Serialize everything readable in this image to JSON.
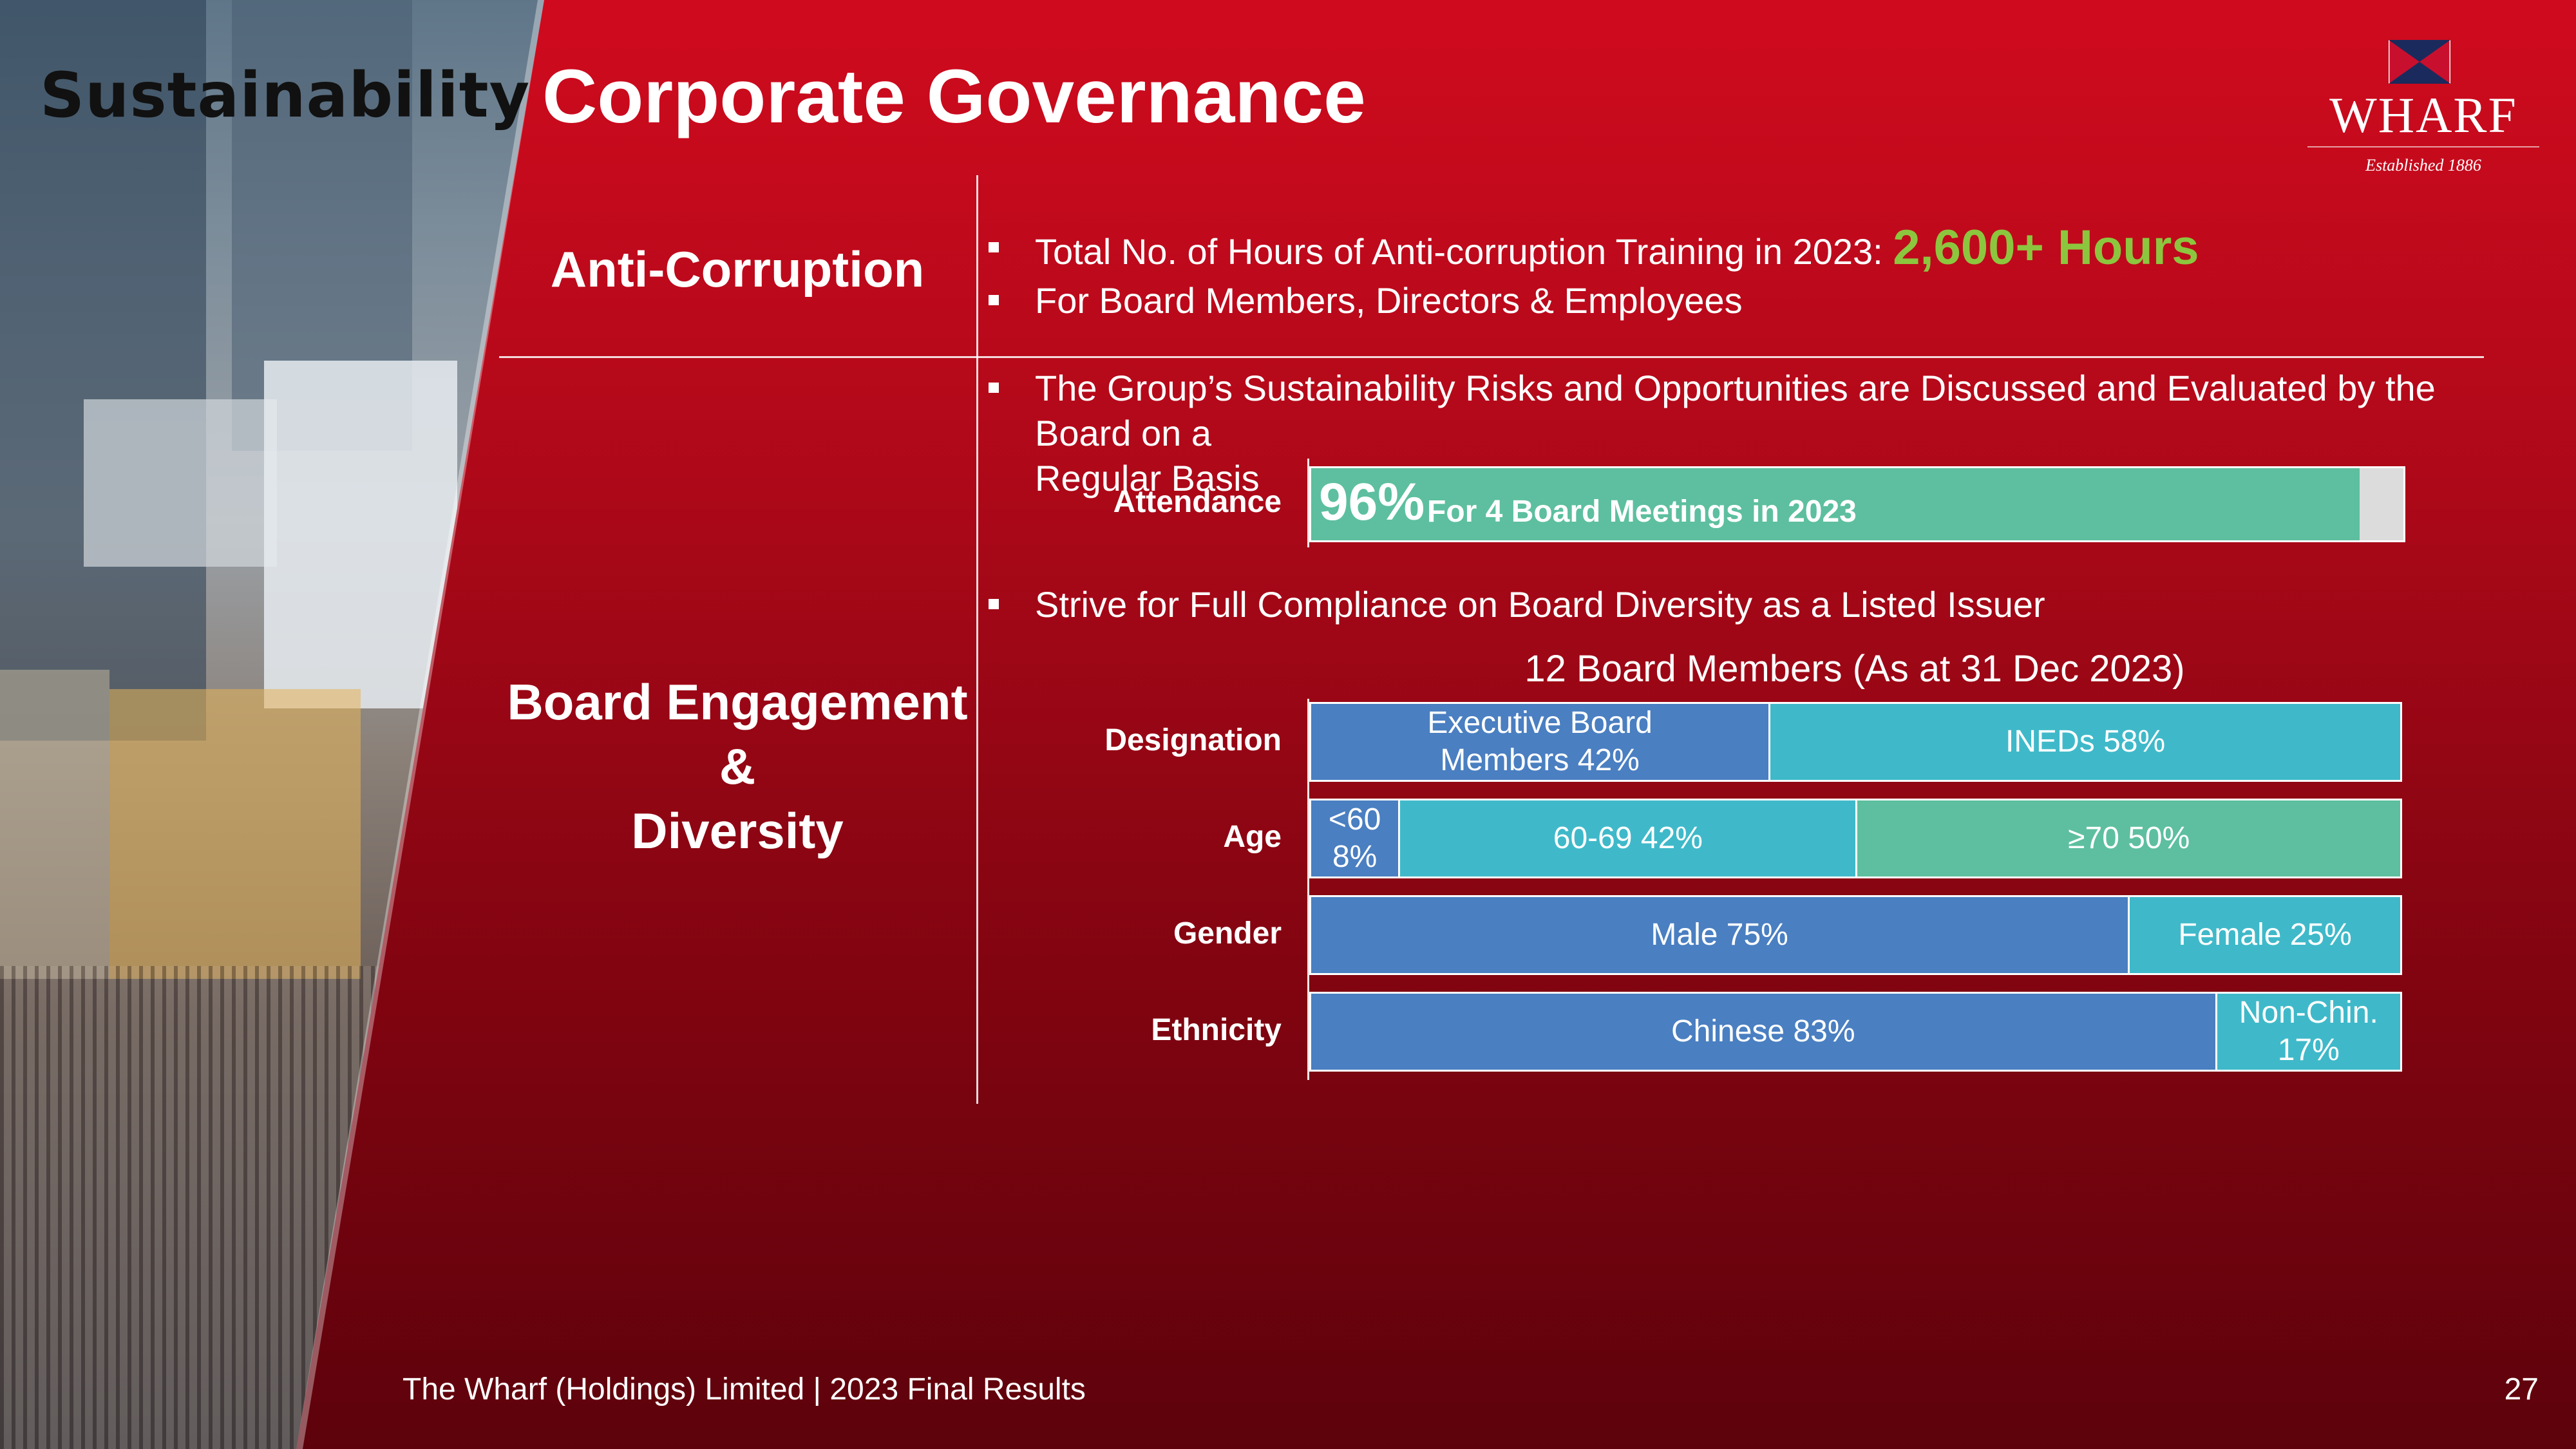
{
  "header": {
    "tag": "Sustainability",
    "title": "Corporate Governance"
  },
  "logo": {
    "name": "WHARF",
    "established": "Established 1886"
  },
  "anti_corruption": {
    "heading": "Anti-Corruption",
    "bullets": [
      {
        "text": "Total No. of Hours of Anti-corruption Training in 2023: ",
        "highlight": "2,600+ Hours"
      },
      {
        "text": "For Board Members, Directors & Employees"
      }
    ]
  },
  "board": {
    "heading_line1": "Board Engagement &",
    "heading_line2": "Diversity",
    "bullet1_line1": "The Group’s Sustainability Risks and Opportunities are Discussed and Evaluated by the Board on a",
    "bullet1_line2": "Regular Basis",
    "attendance": {
      "label": "Attendance",
      "value_pct": 96,
      "value_text": "96%",
      "description": "For 4 Board Meetings in 2023"
    },
    "bullet2": "Strive for Full Compliance on Board Diversity as a Listed Issuer"
  },
  "chart_data": {
    "type": "bar",
    "orientation": "horizontal-stacked-100",
    "title": "12 Board Members (As at 31 Dec 2023)",
    "categories": [
      "Designation",
      "Age",
      "Gender",
      "Ethnicity"
    ],
    "rows": [
      {
        "category": "Designation",
        "segments": [
          {
            "label_line1": "Executive Board",
            "label_line2": "Members 42%",
            "value": 42,
            "color": "#4a7fc1"
          },
          {
            "label_line1": "INEDs 58%",
            "label_line2": "",
            "value": 58,
            "color": "#3fb9c9"
          }
        ]
      },
      {
        "category": "Age",
        "segments": [
          {
            "label_line1": "<60 8%",
            "label_line2": "",
            "value": 8,
            "color": "#4a7fc1"
          },
          {
            "label_line1": "60-69 42%",
            "label_line2": "",
            "value": 42,
            "color": "#3fb9c9"
          },
          {
            "label_line1": "≥70 50%",
            "label_line2": "",
            "value": 50,
            "color": "#5dbf9f"
          }
        ]
      },
      {
        "category": "Gender",
        "segments": [
          {
            "label_line1": "Male 75%",
            "label_line2": "",
            "value": 75,
            "color": "#4a7fc1"
          },
          {
            "label_line1": "Female 25%",
            "label_line2": "",
            "value": 25,
            "color": "#3fb9c9"
          }
        ]
      },
      {
        "category": "Ethnicity",
        "segments": [
          {
            "label_line1": "Chinese 83%",
            "label_line2": "",
            "value": 83,
            "color": "#4a7fc1"
          },
          {
            "label_line1": "Non-Chin.",
            "label_line2": "17%",
            "value": 17,
            "color": "#3fb9c9"
          }
        ]
      }
    ]
  },
  "footer": {
    "left": "The Wharf (Holdings) Limited | 2023 Final Results",
    "page_number": "27"
  }
}
